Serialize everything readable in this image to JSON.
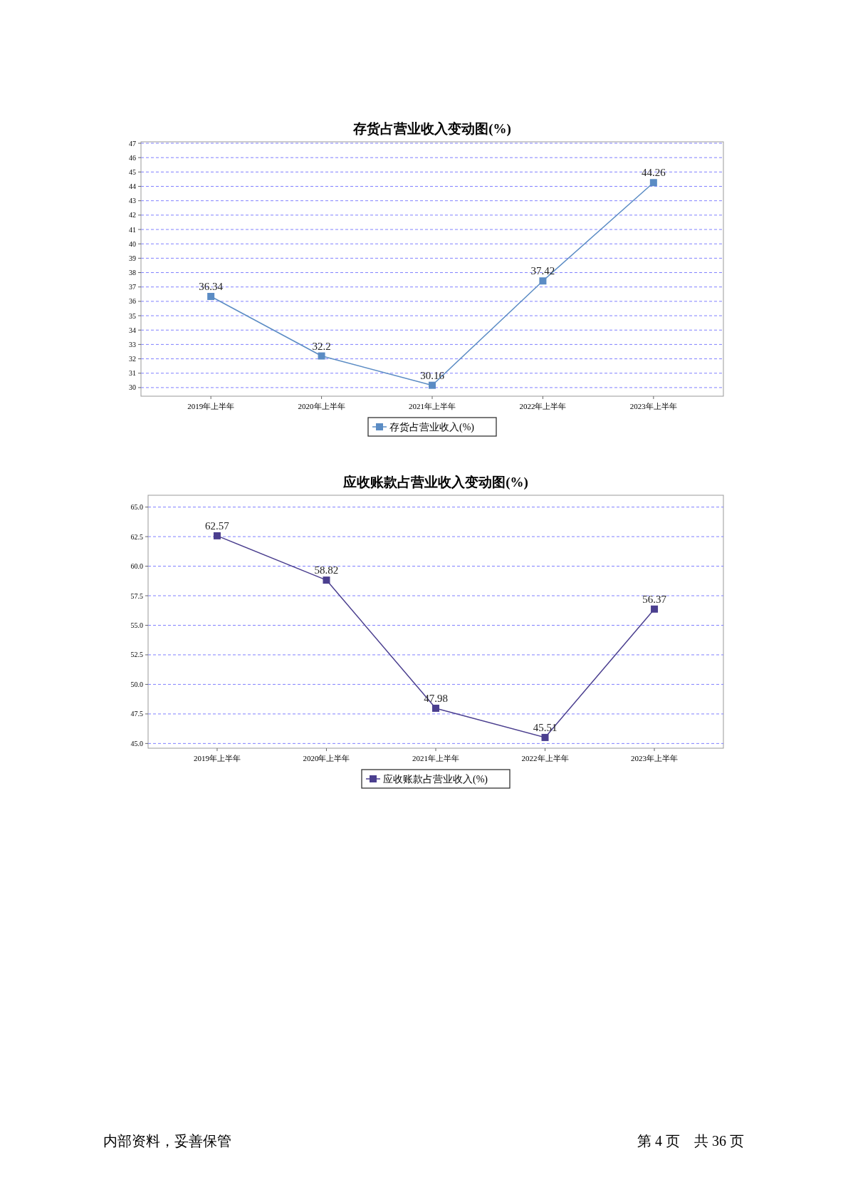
{
  "chart_data": [
    {
      "type": "line",
      "title": "存货占营业收入变动图(%)",
      "categories": [
        "2019年上半年",
        "2020年上半年",
        "2021年上半年",
        "2022年上半年",
        "2023年上半年"
      ],
      "series": [
        {
          "name": "存货占营业收入(%)",
          "color": "#5b8cc4",
          "values": [
            36.34,
            32.2,
            30.16,
            37.42,
            44.26
          ]
        }
      ],
      "ylim": [
        29.4,
        47.1
      ],
      "yticks": [
        30,
        31,
        32,
        33,
        34,
        35,
        36,
        37,
        38,
        39,
        40,
        41,
        42,
        43,
        44,
        45,
        46,
        47
      ],
      "grid": "y",
      "legend": "bottom",
      "marker": "square",
      "data_labels": true
    },
    {
      "type": "line",
      "title": "应收账款占营业收入变动图(%)",
      "categories": [
        "2019年上半年",
        "2020年上半年",
        "2021年上半年",
        "2022年上半年",
        "2023年上半年"
      ],
      "series": [
        {
          "name": "应收账款占营业收入(%)",
          "color": "#4b3f8f",
          "values": [
            62.57,
            58.82,
            47.98,
            45.51,
            56.37
          ]
        }
      ],
      "ylim": [
        44.6,
        66
      ],
      "yticks": [
        {
          "value": 45,
          "label": "45.0"
        },
        {
          "value": 47.5,
          "label": "47.5"
        },
        {
          "value": 50,
          "label": "50.0"
        },
        {
          "value": 52.5,
          "label": "52.5"
        },
        {
          "value": 55,
          "label": "55.0"
        },
        {
          "value": 57.5,
          "label": "57.5"
        },
        {
          "value": 60,
          "label": "60.0"
        },
        {
          "value": 62.5,
          "label": "62.5"
        },
        {
          "value": 65,
          "label": "65.0"
        }
      ],
      "grid": "y",
      "legend": "bottom",
      "marker": "square",
      "data_labels": true,
      "annotations": [
        "内部资料，妥善保管",
        "第 4 页　共 36 页"
      ]
    }
  ]
}
